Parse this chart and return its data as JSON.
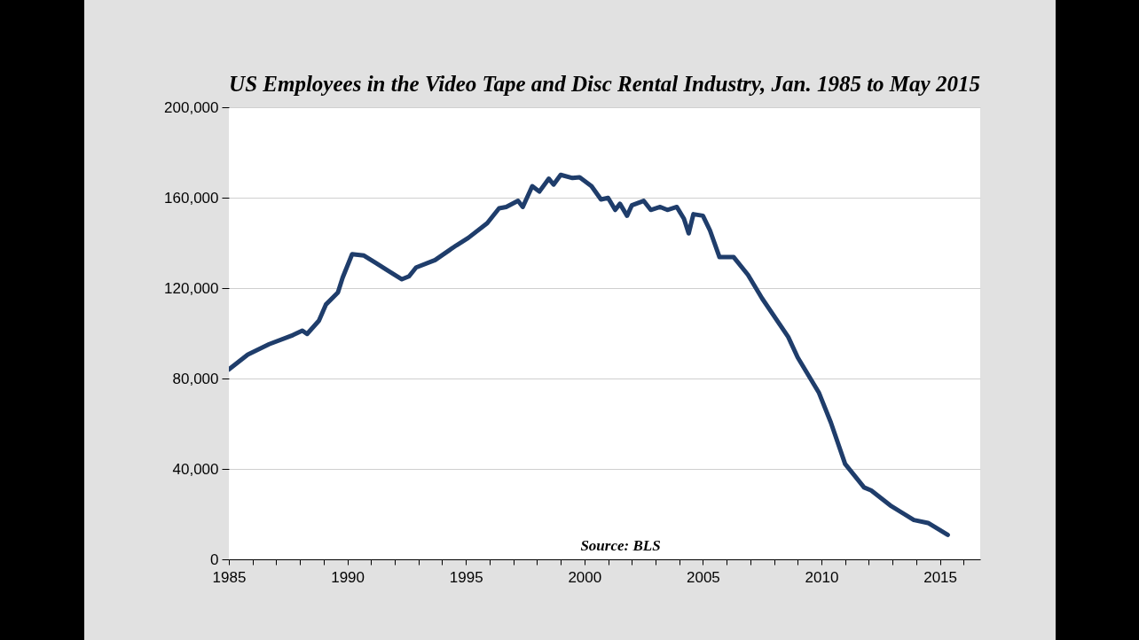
{
  "chart_data": {
    "type": "line",
    "title": "US Employees in the Video Tape and\nDisc Rental Industry, Jan. 1985 to May 2015",
    "x": [
      1985.0,
      1985.8,
      1986.7,
      1987.7,
      1988.1,
      1988.3,
      1988.8,
      1989.1,
      1989.6,
      1989.8,
      1990.2,
      1990.7,
      1991.2,
      1991.7,
      1992.3,
      1992.6,
      1992.9,
      1993.7,
      1994.6,
      1995.1,
      1995.9,
      1996.4,
      1996.7,
      1997.2,
      1997.4,
      1997.8,
      1998.1,
      1998.5,
      1998.7,
      1999.0,
      1999.5,
      1999.8,
      2000.3,
      2000.7,
      2001.0,
      2001.3,
      2001.5,
      2001.8,
      2002.0,
      2002.5,
      2002.8,
      2003.2,
      2003.5,
      2003.9,
      2004.2,
      2004.4,
      2004.6,
      2005.0,
      2005.3,
      2005.7,
      2006.3,
      2006.9,
      2007.5,
      2008.6,
      2009.0,
      2009.9,
      2010.4,
      2011.0,
      2011.8,
      2012.1,
      2012.9,
      2013.9,
      2014.5,
      2015.33
    ],
    "series": [
      {
        "color": "#1f3d6b",
        "values": [
          84000,
          90600,
          95200,
          99200,
          101200,
          99700,
          105600,
          112800,
          118000,
          124600,
          135000,
          134400,
          131100,
          127800,
          123900,
          125200,
          129100,
          132400,
          138900,
          142200,
          148700,
          155300,
          155900,
          158600,
          155900,
          165100,
          162700,
          168400,
          165800,
          170100,
          168700,
          169000,
          165100,
          159200,
          159900,
          154600,
          157300,
          152000,
          156600,
          158600,
          154600,
          155900,
          154600,
          155900,
          150700,
          144200,
          152700,
          152000,
          145500,
          133700,
          133700,
          125900,
          115400,
          98400,
          89300,
          73600,
          60500,
          42200,
          31800,
          30500,
          23900,
          17400,
          16100,
          10800
        ]
      }
    ],
    "xlim": [
      1985,
      2016.7
    ],
    "xticks": [
      1985,
      {
        "value": 1986,
        "label": null
      },
      {
        "value": 1987,
        "label": null
      },
      {
        "value": 1988,
        "label": null
      },
      {
        "value": 1989,
        "label": null
      },
      1990,
      {
        "value": 1991,
        "label": null
      },
      {
        "value": 1992,
        "label": null
      },
      {
        "value": 1993,
        "label": null
      },
      {
        "value": 1994,
        "label": null
      },
      1995,
      {
        "value": 1996,
        "label": null
      },
      {
        "value": 1997,
        "label": null
      },
      {
        "value": 1998,
        "label": null
      },
      {
        "value": 1999,
        "label": null
      },
      2000,
      {
        "value": 2001,
        "label": null
      },
      {
        "value": 2002,
        "label": null
      },
      {
        "value": 2003,
        "label": null
      },
      {
        "value": 2004,
        "label": null
      },
      2005,
      {
        "value": 2006,
        "label": null
      },
      {
        "value": 2007,
        "label": null
      },
      {
        "value": 2008,
        "label": null
      },
      {
        "value": 2009,
        "label": null
      },
      2010,
      {
        "value": 2011,
        "label": null
      },
      {
        "value": 2012,
        "label": null
      },
      {
        "value": 2013,
        "label": null
      },
      {
        "value": 2014,
        "label": null
      },
      2015,
      {
        "value": 2016,
        "label": null
      }
    ],
    "ylim": [
      0,
      200000
    ],
    "yticks": [
      0,
      {
        "value": 40000,
        "label": "40,000"
      },
      {
        "value": 80000,
        "label": "80,000"
      },
      {
        "value": 120000,
        "label": "120,000"
      },
      {
        "value": 160000,
        "label": "160,000"
      },
      {
        "value": 200000,
        "label": "200,000"
      }
    ],
    "grid": "y",
    "annotations": [
      "Source: BLS"
    ]
  }
}
